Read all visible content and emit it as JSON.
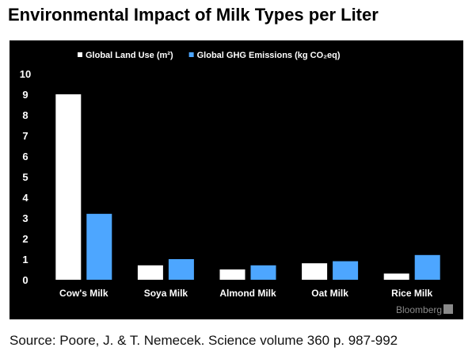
{
  "title": "Environmental Impact of Milk Types per Liter",
  "source": "Source: Poore, J. & T. Nemecek. Science volume 360 p. 987-992",
  "brand": "Bloomberg",
  "chart_data": {
    "type": "bar",
    "categories": [
      "Cow's Milk",
      "Soya Milk",
      "Almond Milk",
      "Oat Milk",
      "Rice Milk"
    ],
    "series": [
      {
        "name": "Global Land Use (m²)",
        "values": [
          9.0,
          0.7,
          0.5,
          0.8,
          0.3
        ],
        "color": "#ffffff"
      },
      {
        "name": "Global GHG Emissions (kg CO₂eq)",
        "values": [
          3.2,
          1.0,
          0.7,
          0.9,
          1.2
        ],
        "color": "#4da6ff"
      }
    ],
    "yticks": [
      "0",
      "1",
      "2",
      "3",
      "4",
      "5",
      "6",
      "7",
      "8",
      "9",
      "10"
    ],
    "ylim": [
      0,
      10
    ],
    "legend": "top",
    "grid": false,
    "background": "#000000"
  }
}
